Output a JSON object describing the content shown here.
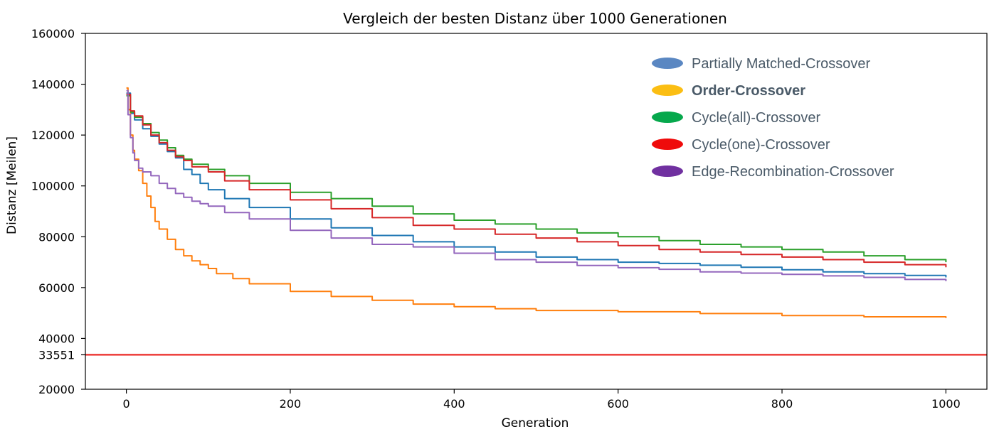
{
  "chart_data": {
    "type": "line",
    "title": "Vergleich der besten Distanz über 1000 Generationen",
    "xlabel": "Generation",
    "ylabel": "Distanz [Meilen]",
    "xlim": [
      -50,
      1050
    ],
    "ylim": [
      20000,
      160000
    ],
    "xticks": [
      0,
      200,
      400,
      600,
      800,
      1000
    ],
    "yticks": [
      20000,
      33551,
      40000,
      60000,
      80000,
      100000,
      120000,
      140000,
      160000
    ],
    "grid": false,
    "legend_position": "top-right",
    "reference_line": {
      "y": 33551,
      "color": "#e8120c"
    },
    "series": [
      {
        "name": "Partially Matched-Crossover",
        "color": "#1f77b4",
        "legend_color": "#5a87c2",
        "bold": false,
        "x": [
          0,
          5,
          10,
          20,
          30,
          40,
          50,
          60,
          70,
          80,
          90,
          100,
          120,
          150,
          200,
          250,
          300,
          350,
          400,
          450,
          500,
          550,
          600,
          650,
          700,
          750,
          800,
          850,
          900,
          950,
          1000
        ],
        "y": [
          136500,
          128500,
          126000,
          122500,
          119500,
          116500,
          113500,
          111000,
          106500,
          104500,
          101000,
          98500,
          95000,
          91500,
          87000,
          83500,
          80500,
          78000,
          76000,
          74000,
          72000,
          71000,
          70000,
          69500,
          68800,
          68000,
          67000,
          66200,
          65500,
          64800,
          64000
        ]
      },
      {
        "name": "Order-Crossover",
        "color": "#ff7f0e",
        "legend_color": "#fbbe13",
        "bold": true,
        "x": [
          0,
          2,
          5,
          8,
          10,
          15,
          20,
          25,
          30,
          35,
          40,
          50,
          60,
          70,
          80,
          90,
          100,
          110,
          130,
          150,
          200,
          250,
          300,
          350,
          400,
          450,
          500,
          600,
          700,
          800,
          900,
          1000
        ],
        "y": [
          138500,
          130000,
          120000,
          114000,
          110500,
          106000,
          101000,
          96000,
          91500,
          86000,
          83000,
          79000,
          75000,
          72500,
          70500,
          69000,
          67500,
          65500,
          63500,
          61500,
          58500,
          56500,
          55000,
          53500,
          52500,
          51700,
          51000,
          50500,
          49800,
          49000,
          48500,
          48000
        ]
      },
      {
        "name": "Cycle(all)-Crossover",
        "color": "#2ca02c",
        "legend_color": "#06a84c",
        "bold": false,
        "x": [
          0,
          5,
          10,
          20,
          30,
          40,
          50,
          60,
          70,
          80,
          100,
          120,
          150,
          200,
          250,
          300,
          350,
          400,
          450,
          500,
          550,
          600,
          650,
          700,
          750,
          800,
          850,
          900,
          950,
          1000
        ],
        "y": [
          135500,
          129000,
          127000,
          124500,
          121000,
          118000,
          115000,
          112000,
          110500,
          108500,
          106500,
          104000,
          101000,
          97500,
          95000,
          92000,
          89000,
          86500,
          85000,
          83000,
          81500,
          80000,
          78500,
          77000,
          76000,
          75000,
          74000,
          72500,
          71000,
          70000
        ]
      },
      {
        "name": "Cycle(one)-Crossover",
        "color": "#d62728",
        "legend_color": "#ef0b0b",
        "bold": false,
        "x": [
          0,
          5,
          10,
          20,
          30,
          40,
          50,
          60,
          70,
          80,
          100,
          120,
          150,
          200,
          250,
          300,
          350,
          400,
          450,
          500,
          550,
          600,
          650,
          700,
          750,
          800,
          850,
          900,
          950,
          1000
        ],
        "y": [
          136000,
          129500,
          127500,
          124000,
          120000,
          117000,
          114000,
          111500,
          110000,
          107500,
          105500,
          102000,
          98500,
          94500,
          91000,
          87500,
          84500,
          83000,
          81000,
          79500,
          78000,
          76500,
          75000,
          74000,
          73000,
          72000,
          71000,
          70000,
          69000,
          68000
        ]
      },
      {
        "name": "Edge-Recombination-Crossover",
        "color": "#9467bd",
        "legend_color": "#7030a0",
        "bold": false,
        "x": [
          0,
          2,
          5,
          8,
          10,
          15,
          20,
          30,
          40,
          50,
          60,
          70,
          80,
          90,
          100,
          120,
          150,
          200,
          250,
          300,
          350,
          400,
          450,
          500,
          550,
          600,
          650,
          700,
          750,
          800,
          850,
          900,
          950,
          1000
        ],
        "y": [
          137500,
          128000,
          119000,
          113000,
          110000,
          107000,
          105500,
          104000,
          101000,
          99000,
          97000,
          95500,
          94000,
          93000,
          92000,
          89500,
          87000,
          82500,
          79500,
          77000,
          76000,
          73500,
          71000,
          70000,
          68700,
          67800,
          67200,
          66200,
          65700,
          65200,
          64600,
          64000,
          63200,
          62500
        ]
      }
    ]
  }
}
